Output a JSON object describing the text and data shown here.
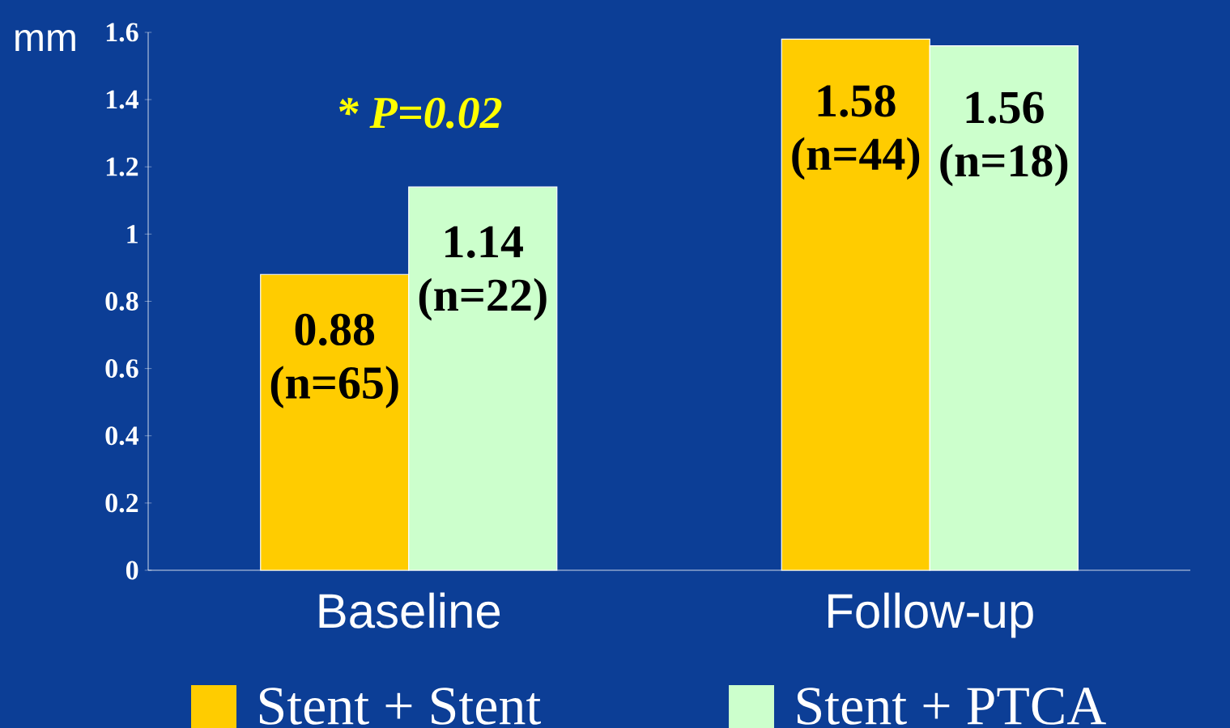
{
  "chart_data": {
    "type": "bar",
    "ylabel": "mm",
    "categories": [
      "Baseline",
      "Follow-up"
    ],
    "series": [
      {
        "name": "Stent + Stent",
        "color": "#ffcc00",
        "values": [
          0.88,
          1.58
        ],
        "value_labels": [
          "0.88 (n=65)",
          "1.58 (n=44)"
        ]
      },
      {
        "name": "Stent + PTCA",
        "color": "#ccffcc",
        "values": [
          1.14,
          1.56
        ],
        "value_labels": [
          "1.14 (n=22)",
          "1.56 (n=18)"
        ]
      }
    ],
    "ylim": [
      0,
      1.6
    ],
    "yticks": [
      0,
      0.2,
      0.4,
      0.6,
      0.8,
      1,
      1.2,
      1.4,
      1.6
    ],
    "annotations": [
      "* P=0.02"
    ],
    "legend": "bottom",
    "grid": false
  }
}
